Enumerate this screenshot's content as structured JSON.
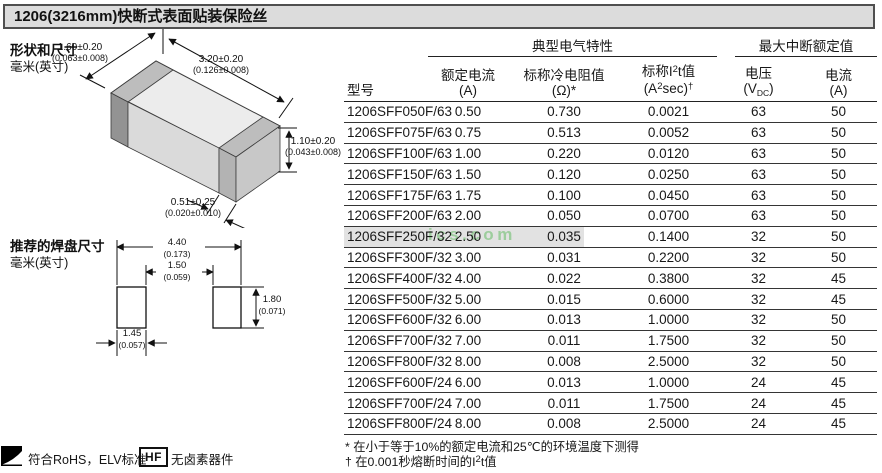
{
  "title": "1206(3216mm)快断式表面贴装保险丝",
  "shape": {
    "heading": "形状和尺寸",
    "units": "毫米(英寸)",
    "width_mm": "1.60±0.20",
    "width_in": "(0.063±0.008)",
    "length_mm": "3.20±0.20",
    "length_in": "(0.126±0.008)",
    "height_mm": "1.10±0.20",
    "height_in": "(0.043±0.008)",
    "terminal_mm": "0.51±0.25",
    "terminal_in": "(0.020±0.010)"
  },
  "pad": {
    "heading": "推荐的焊盘尺寸",
    "units": "毫米(英寸)",
    "overall_mm": "4.40",
    "overall_in": "(0.173)",
    "gap_mm": "1.50",
    "gap_in": "(0.059)",
    "height_mm": "1.80",
    "height_in": "(0.071)",
    "width_mm": "1.45",
    "width_in": "(0.057)"
  },
  "table": {
    "group_electrical": "典型电气特性",
    "group_interrupt": "最大中断额定值",
    "col_part": "型号",
    "col_current_1": "额定电流",
    "col_current_2": "(A)",
    "col_resistance_1": "标称冷电阻值",
    "col_resistance_2": "(Ω)*",
    "col_i2t_1a": "标称I",
    "col_i2t_1sup": "2",
    "col_i2t_1b": "t值",
    "col_i2t_2a": "(A",
    "col_i2t_2sup": "2",
    "col_i2t_2b": "sec)",
    "col_i2t_2dag": "†",
    "col_voltage_1": "电压",
    "col_voltage_2a": "(V",
    "col_voltage_2sub": "DC",
    "col_voltage_2b": ")",
    "col_amps_1": "电流",
    "col_amps_2": "(A)",
    "rows": [
      {
        "part": "1206SFF050F/63",
        "amps": "0.50",
        "ohms": "0.730",
        "i2t": "0.0021",
        "volts": "63",
        "inter": "50"
      },
      {
        "part": "1206SFF075F/63",
        "amps": "0.75",
        "ohms": "0.513",
        "i2t": "0.0052",
        "volts": "63",
        "inter": "50"
      },
      {
        "part": "1206SFF100F/63",
        "amps": "1.00",
        "ohms": "0.220",
        "i2t": "0.0120",
        "volts": "63",
        "inter": "50"
      },
      {
        "part": "1206SFF150F/63",
        "amps": "1.50",
        "ohms": "0.120",
        "i2t": "0.0250",
        "volts": "63",
        "inter": "50"
      },
      {
        "part": "1206SFF175F/63",
        "amps": "1.75",
        "ohms": "0.100",
        "i2t": "0.0450",
        "volts": "63",
        "inter": "50"
      },
      {
        "part": "1206SFF200F/63",
        "amps": "2.00",
        "ohms": "0.050",
        "i2t": "0.0700",
        "volts": "63",
        "inter": "50"
      },
      {
        "part": "1206SFF250F/32",
        "amps": "2.50",
        "ohms": "0.035",
        "i2t": "0.1400",
        "volts": "32",
        "inter": "50"
      },
      {
        "part": "1206SFF300F/32",
        "amps": "3.00",
        "ohms": "0.031",
        "i2t": "0.2200",
        "volts": "32",
        "inter": "50"
      },
      {
        "part": "1206SFF400F/32",
        "amps": "4.00",
        "ohms": "0.022",
        "i2t": "0.3800",
        "volts": "32",
        "inter": "45"
      },
      {
        "part": "1206SFF500F/32",
        "amps": "5.00",
        "ohms": "0.015",
        "i2t": "0.6000",
        "volts": "32",
        "inter": "45"
      },
      {
        "part": "1206SFF600F/32",
        "amps": "6.00",
        "ohms": "0.013",
        "i2t": "1.0000",
        "volts": "32",
        "inter": "50"
      },
      {
        "part": "1206SFF700F/32",
        "amps": "7.00",
        "ohms": "0.011",
        "i2t": "1.7500",
        "volts": "32",
        "inter": "50"
      },
      {
        "part": "1206SFF800F/32",
        "amps": "8.00",
        "ohms": "0.008",
        "i2t": "2.5000",
        "volts": "32",
        "inter": "50"
      },
      {
        "part": "1206SFF600F/24",
        "amps": "6.00",
        "ohms": "0.013",
        "i2t": "1.0000",
        "volts": "24",
        "inter": "45"
      },
      {
        "part": "1206SFF700F/24",
        "amps": "7.00",
        "ohms": "0.011",
        "i2t": "1.7500",
        "volts": "24",
        "inter": "45"
      },
      {
        "part": "1206SFF800F/24",
        "amps": "8.00",
        "ohms": "0.008",
        "i2t": "2.5000",
        "volts": "24",
        "inter": "45"
      }
    ]
  },
  "footnotes": {
    "note1": "* 在小于等于10%的额定电流和25℃的环境温度下测得",
    "note2_a": "† 在0.001秒熔断时间的I",
    "note2_sup": "2",
    "note2_b": "t值"
  },
  "compliance": {
    "rohs_text": "符合RoHS，ELV标准",
    "hf_label": "HF",
    "hf_text": "无卤素器件"
  },
  "watermark": {
    "text": "ics.com",
    "color": "#8cc88c"
  }
}
